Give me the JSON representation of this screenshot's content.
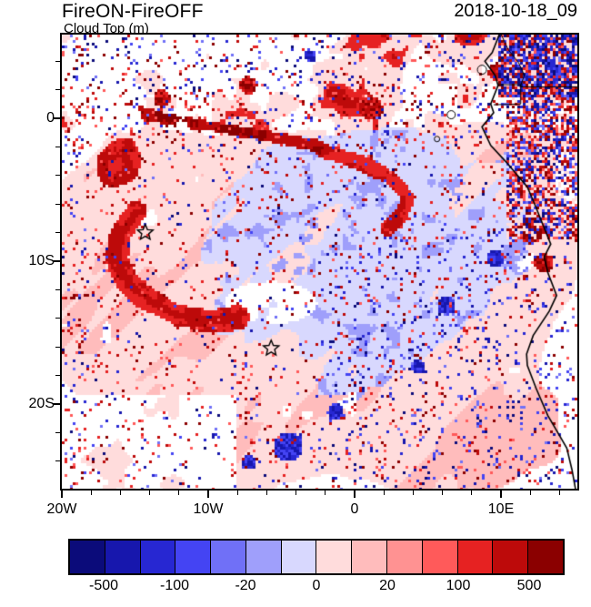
{
  "chart_data": {
    "type": "heatmap",
    "title": "FireON-FireOFF",
    "subtitle": "Cloud Top (m)",
    "timestamp": "2018-10-18_09",
    "x_axis": {
      "ticks": [
        {
          "label": "20W",
          "lon": -20
        },
        {
          "label": "10W",
          "lon": -10
        },
        {
          "label": "0",
          "lon": 0
        },
        {
          "label": "10E",
          "lon": 10
        }
      ],
      "range_lon": [
        -20,
        15.2
      ]
    },
    "y_axis": {
      "ticks": [
        {
          "label": "0",
          "lat": 0
        },
        {
          "label": "10S",
          "lat": -10
        },
        {
          "label": "20S",
          "lat": -20
        }
      ],
      "range_lat": [
        -25.9,
        5.9
      ]
    },
    "colorbar": {
      "labels": [
        "-500",
        "-100",
        "-20",
        "0",
        "20",
        "100",
        "500"
      ],
      "colors": [
        "#0b0b7a",
        "#1717ad",
        "#2727d2",
        "#4444f3",
        "#7070f7",
        "#9f9ffb",
        "#d8d8fe",
        "#ffdcdc",
        "#ffbcbc",
        "#ff9292",
        "#ff5a5a",
        "#e62222",
        "#bd0a0a",
        "#8b0000"
      ]
    },
    "markers": [
      {
        "symbol": "star",
        "lon": -14.3,
        "lat": -8.0
      },
      {
        "symbol": "star",
        "lon": -5.7,
        "lat": -16.1
      }
    ],
    "field_colors": {
      "positive_light": "#ffdcdc",
      "negative_light": "#d8d8fe",
      "background": "#ffffff"
    }
  }
}
